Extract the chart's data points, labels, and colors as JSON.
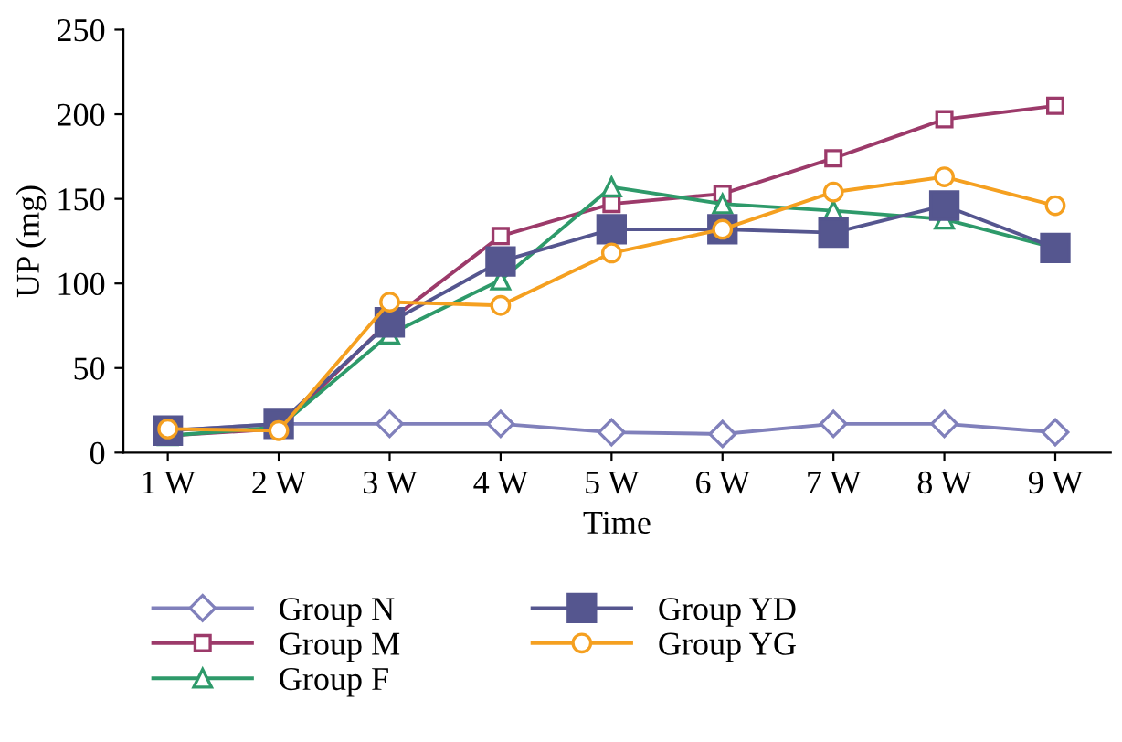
{
  "chart_data": {
    "type": "line",
    "xlabel": "Time",
    "ylabel": "UP (mg)",
    "categories": [
      "1 W",
      "2 W",
      "3 W",
      "4 W",
      "5 W",
      "6 W",
      "7 W",
      "8 W",
      "9 W"
    ],
    "ylim": [
      0,
      250
    ],
    "yticks": [
      0,
      50,
      100,
      150,
      200,
      250
    ],
    "grid": false,
    "legend": "bottom",
    "series": [
      {
        "name": "Group N",
        "color": "#8080bb",
        "marker": "diamond",
        "values": [
          13,
          17,
          17,
          17,
          12,
          11,
          17,
          17,
          12
        ]
      },
      {
        "name": "Group M",
        "color": "#9c3a6a",
        "marker": "square",
        "values": [
          10,
          14,
          78,
          128,
          147,
          153,
          174,
          197,
          205
        ]
      },
      {
        "name": "Group F",
        "color": "#2e9a6a",
        "marker": "triangle",
        "values": [
          10,
          15,
          70,
          102,
          157,
          147,
          143,
          138,
          121
        ]
      },
      {
        "name": "Group YD",
        "color": "#55568f",
        "marker": "square",
        "values": [
          13,
          17,
          77,
          113,
          132,
          132,
          130,
          146,
          121
        ]
      },
      {
        "name": "Group YG",
        "color": "#f5a020",
        "marker": "circle",
        "values": [
          14,
          13,
          89,
          87,
          118,
          132,
          154,
          163,
          146
        ]
      }
    ]
  }
}
